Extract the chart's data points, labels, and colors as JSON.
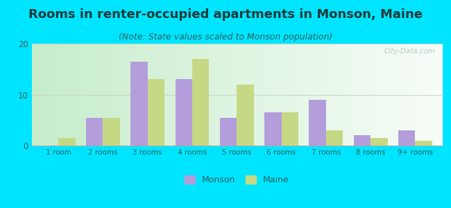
{
  "title": "Rooms in renter-occupied apartments in Monson, Maine",
  "subtitle": "(Note: State values scaled to Monson population)",
  "categories": [
    "1 room",
    "2 rooms",
    "3 rooms",
    "4 rooms",
    "5 rooms",
    "6 rooms",
    "7 rooms",
    "8 rooms",
    "9+ rooms"
  ],
  "monson_values": [
    0,
    5.5,
    16.5,
    13.0,
    5.5,
    6.5,
    9.0,
    2.0,
    3.0
  ],
  "maine_values": [
    1.5,
    5.5,
    13.0,
    17.0,
    12.0,
    6.5,
    3.0,
    1.5,
    1.0
  ],
  "monson_color": "#b39ddb",
  "maine_color": "#c5d985",
  "background_outer": "#00e5ff",
  "ylim": [
    0,
    20
  ],
  "yticks": [
    0,
    10,
    20
  ],
  "title_fontsize": 13,
  "subtitle_fontsize": 9,
  "bar_width": 0.38,
  "legend_monson": "Monson",
  "legend_maine": "Maine",
  "title_color": "#1a3a3a",
  "subtitle_color": "#2a6060",
  "tick_color": "#2a6060",
  "grid_color": "#c8d8c8",
  "watermark": "City-Data.com"
}
